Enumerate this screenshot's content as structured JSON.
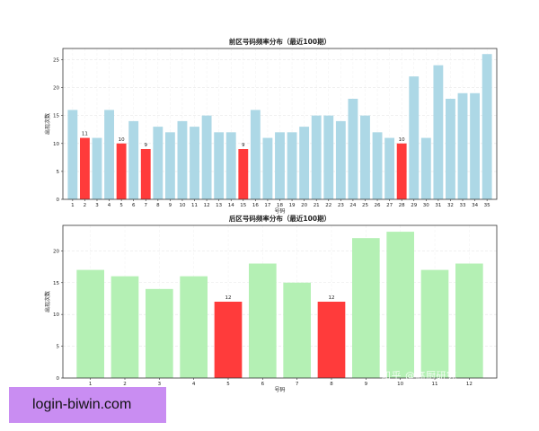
{
  "chart_data": [
    {
      "type": "bar",
      "title": "前区号码频率分布（最近100期）",
      "xlabel": "号码",
      "ylabel": "出现次数",
      "categories": [
        "1",
        "2",
        "3",
        "4",
        "5",
        "6",
        "7",
        "8",
        "9",
        "10",
        "11",
        "12",
        "13",
        "14",
        "15",
        "16",
        "17",
        "18",
        "19",
        "20",
        "21",
        "22",
        "23",
        "24",
        "25",
        "26",
        "27",
        "28",
        "29",
        "30",
        "31",
        "32",
        "33",
        "34",
        "35"
      ],
      "values": [
        16,
        11,
        11,
        16,
        10,
        14,
        9,
        13,
        12,
        14,
        13,
        15,
        12,
        12,
        9,
        16,
        11,
        12,
        12,
        13,
        15,
        15,
        14,
        18,
        15,
        12,
        11,
        10,
        22,
        11,
        24,
        18,
        19,
        19,
        26
      ],
      "highlighted": [
        "2",
        "5",
        "7",
        "15",
        "28"
      ],
      "data_labels": {
        "2": "11",
        "5": "10",
        "7": "9",
        "15": "9",
        "28": "10"
      },
      "ylim": [
        0,
        27
      ],
      "yticks": [
        0,
        5,
        10,
        15,
        20,
        25
      ],
      "grid": true,
      "colors": {
        "base": "#add8e6",
        "highlight": "#ff3b3b"
      }
    },
    {
      "type": "bar",
      "title": "后区号码频率分布（最近100期）",
      "xlabel": "号码",
      "ylabel": "出现次数",
      "categories": [
        "1",
        "2",
        "3",
        "4",
        "5",
        "6",
        "7",
        "8",
        "9",
        "10",
        "11",
        "12"
      ],
      "values": [
        17,
        16,
        14,
        16,
        12,
        18,
        15,
        12,
        22,
        23,
        17,
        18
      ],
      "highlighted": [
        "5",
        "8"
      ],
      "data_labels": {
        "5": "12",
        "8": "12"
      },
      "ylim": [
        0,
        24
      ],
      "yticks": [
        0,
        5,
        10,
        15,
        20
      ],
      "grid": true,
      "colors": {
        "base": "#b4f0b4",
        "highlight": "#ff3b3b"
      }
    }
  ],
  "banner": {
    "text": "login-biwin.com",
    "color": "#c98df2"
  },
  "watermark": {
    "text": "知乎 @高厨研究"
  }
}
